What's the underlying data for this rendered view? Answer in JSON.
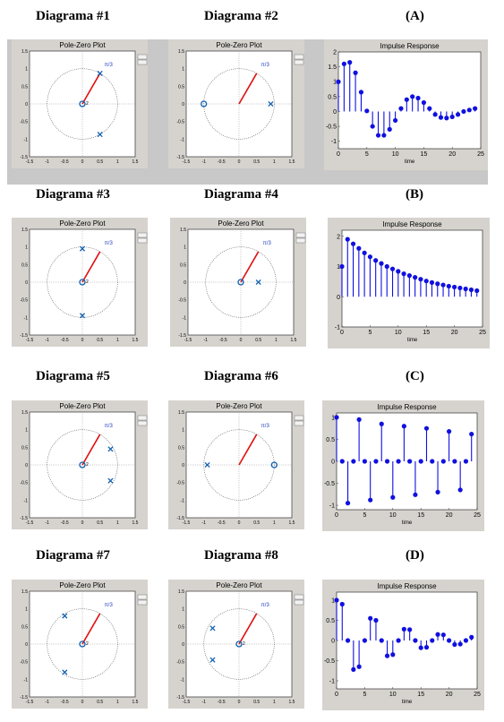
{
  "headers": {
    "d1": "Diagrama #1",
    "d2": "Diagrama #2",
    "a": "(A)",
    "d3": "Diagrama #3",
    "d4": "Diagrama #4",
    "b": "(B)",
    "d5": "Diagrama #5",
    "d6": "Diagrama #6",
    "c": "(C)",
    "d7": "Diagrama #7",
    "d8": "Diagrama #8",
    "d": "(D)"
  },
  "pz_plots": [
    {
      "id": "d1",
      "title": "Pole-Zero Plot",
      "angle_label": "π/3",
      "zeros": [
        [
          0,
          0
        ]
      ],
      "poles": [
        [
          0.5,
          0.866
        ],
        [
          0.5,
          -0.866
        ]
      ],
      "zero_multiplicity": "2"
    },
    {
      "id": "d2",
      "title": "Pole-Zero Plot",
      "angle_label": "π/3",
      "zeros": [
        [
          -1,
          0
        ]
      ],
      "poles": [
        [
          0.9,
          0
        ]
      ],
      "zero_multiplicity": ""
    },
    {
      "id": "d3",
      "title": "Pole-Zero Plot",
      "angle_label": "π/3",
      "zeros": [
        [
          0,
          0
        ]
      ],
      "poles": [
        [
          0,
          0.95
        ],
        [
          0,
          -0.95
        ]
      ],
      "zero_multiplicity": "2"
    },
    {
      "id": "d4",
      "title": "Pole-Zero Plot",
      "angle_label": "π/3",
      "zeros": [
        [
          0,
          0
        ]
      ],
      "poles": [
        [
          0.5,
          0
        ]
      ],
      "zero_multiplicity": ""
    },
    {
      "id": "d5",
      "title": "Pole-Zero Plot",
      "angle_label": "π/3",
      "zeros": [
        [
          0,
          0
        ]
      ],
      "poles": [
        [
          0.8,
          0.45
        ],
        [
          0.8,
          -0.45
        ]
      ],
      "zero_multiplicity": "2"
    },
    {
      "id": "d6",
      "title": "Pole-Zero Plot",
      "angle_label": "π/3",
      "zeros": [
        [
          1,
          0
        ]
      ],
      "poles": [
        [
          -0.9,
          0
        ]
      ],
      "zero_multiplicity": ""
    },
    {
      "id": "d7",
      "title": "Pole-Zero Plot",
      "angle_label": "π/3",
      "zeros": [
        [
          0,
          0
        ]
      ],
      "poles": [
        [
          -0.5,
          0.8
        ],
        [
          -0.5,
          -0.8
        ]
      ],
      "zero_multiplicity": "2"
    },
    {
      "id": "d8",
      "title": "Pole-Zero Plot",
      "angle_label": "π/3",
      "zeros": [
        [
          0,
          0
        ]
      ],
      "poles": [
        [
          -0.75,
          0.45
        ],
        [
          -0.75,
          -0.45
        ]
      ],
      "zero_multiplicity": "2"
    }
  ],
  "pz_axis": {
    "xticks": [
      "-1.5",
      "-1",
      "-0.5",
      "0",
      "0.5",
      "1",
      "1.5"
    ],
    "yticks": [
      "1.5",
      "1",
      "0.5",
      "0",
      "-0.5",
      "-1",
      "-1.5"
    ]
  },
  "chart_data": [
    {
      "id": "A",
      "type": "stem",
      "title": "Impulse Response",
      "xlabel": "time",
      "xlim": [
        0,
        25
      ],
      "ylim": [
        -1.25,
        2
      ],
      "xticks": [
        "0",
        "5",
        "10",
        "15",
        "20",
        "25"
      ],
      "yticks": [
        "2",
        "1.5",
        "1",
        "0.5",
        "0",
        "-0.5",
        "-1"
      ],
      "x": [
        0,
        1,
        2,
        3,
        4,
        5,
        6,
        7,
        8,
        9,
        10,
        11,
        12,
        13,
        14,
        15,
        16,
        17,
        18,
        19,
        20,
        21,
        22,
        23,
        24
      ],
      "values": [
        1,
        1.6,
        1.65,
        1.3,
        0.65,
        0.02,
        -0.5,
        -0.8,
        -0.8,
        -0.6,
        -0.3,
        0.1,
        0.4,
        0.5,
        0.45,
        0.3,
        0.1,
        -0.1,
        -0.2,
        -0.22,
        -0.18,
        -0.1,
        0,
        0.05,
        0.1
      ]
    },
    {
      "id": "B",
      "type": "stem",
      "title": "Impulse Response",
      "xlabel": "time",
      "xlim": [
        0,
        25
      ],
      "ylim": [
        -1,
        2.2
      ],
      "xticks": [
        "0",
        "5",
        "10",
        "15",
        "20",
        "25"
      ],
      "yticks": [
        "2",
        "1",
        "0",
        "-1"
      ],
      "x": [
        0,
        1,
        2,
        3,
        4,
        5,
        6,
        7,
        8,
        9,
        10,
        11,
        12,
        13,
        14,
        15,
        16,
        17,
        18,
        19,
        20,
        21,
        22,
        23,
        24
      ],
      "values": [
        1,
        1.9,
        1.75,
        1.6,
        1.45,
        1.32,
        1.2,
        1.1,
        1.0,
        0.92,
        0.84,
        0.76,
        0.7,
        0.64,
        0.58,
        0.52,
        0.47,
        0.43,
        0.39,
        0.35,
        0.32,
        0.29,
        0.26,
        0.23,
        0.2
      ]
    },
    {
      "id": "C",
      "type": "stem",
      "title": "Impulse Response",
      "xlabel": "time",
      "xlim": [
        0,
        25
      ],
      "ylim": [
        -1.1,
        1.1
      ],
      "xticks": [
        "0",
        "5",
        "10",
        "15",
        "20",
        "25"
      ],
      "yticks": [
        "1",
        "0.5",
        "0",
        "-0.5",
        "-1"
      ],
      "x": [
        0,
        1,
        2,
        3,
        4,
        5,
        6,
        7,
        8,
        9,
        10,
        11,
        12,
        13,
        14,
        15,
        16,
        17,
        18,
        19,
        20,
        21,
        22,
        23,
        24
      ],
      "values": [
        1,
        0,
        -0.95,
        0,
        0.95,
        0,
        -0.88,
        0,
        0.85,
        0,
        -0.82,
        0,
        0.8,
        0,
        -0.76,
        0,
        0.75,
        0,
        -0.7,
        0,
        0.68,
        0,
        -0.65,
        0,
        0.62
      ]
    },
    {
      "id": "D",
      "type": "stem",
      "title": "Impulse Response",
      "xlabel": "time",
      "xlim": [
        0,
        25
      ],
      "ylim": [
        -1.2,
        1.2
      ],
      "xticks": [
        "0",
        "5",
        "10",
        "15",
        "20",
        "25"
      ],
      "yticks": [
        "1",
        "0.5",
        "0",
        "-0.5",
        "-1"
      ],
      "x": [
        0,
        1,
        2,
        3,
        4,
        5,
        6,
        7,
        8,
        9,
        10,
        11,
        12,
        13,
        14,
        15,
        16,
        17,
        18,
        19,
        20,
        21,
        22,
        23,
        24
      ],
      "values": [
        1,
        0.9,
        0,
        -0.72,
        -0.65,
        0,
        0.55,
        0.5,
        0,
        -0.38,
        -0.35,
        0,
        0.28,
        0.27,
        0,
        -0.18,
        -0.17,
        0,
        0.15,
        0.14,
        0,
        -0.1,
        -0.09,
        0,
        0.08
      ]
    }
  ]
}
